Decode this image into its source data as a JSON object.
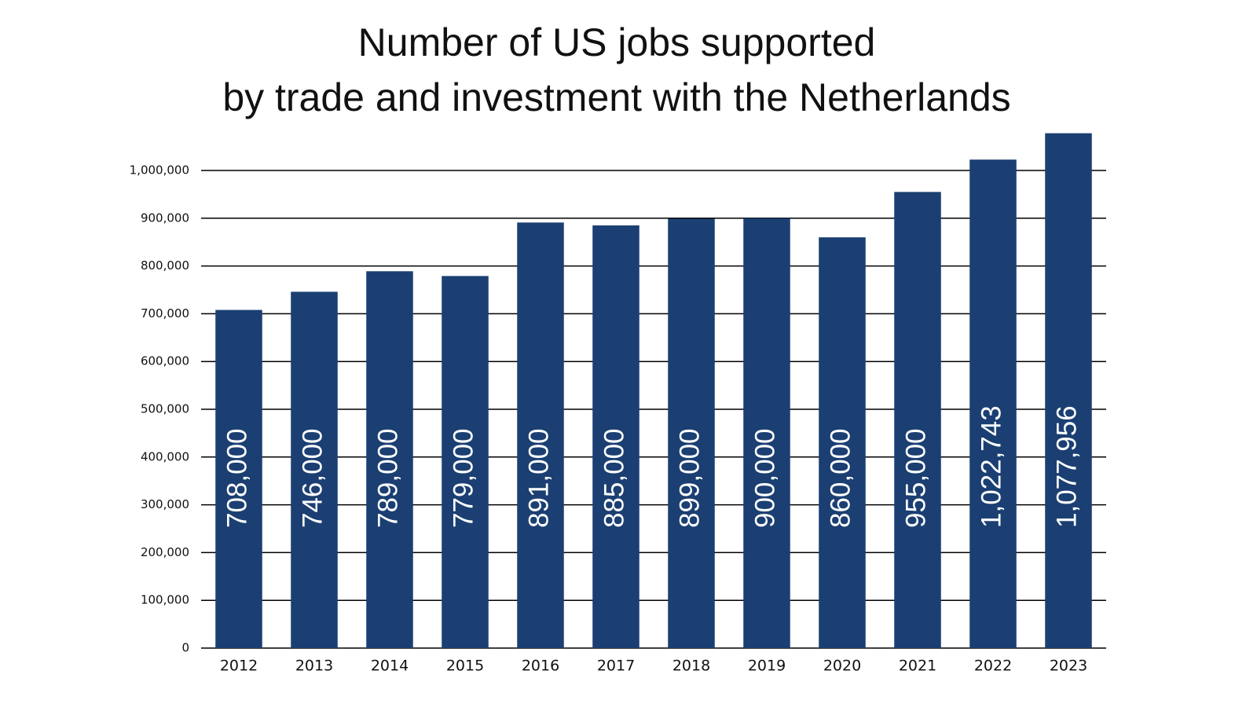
{
  "chart_data": {
    "type": "bar",
    "title": [
      "Number of US jobs supported",
      "by trade and investment with the Netherlands"
    ],
    "categories": [
      "2012",
      "2013",
      "2014",
      "2015",
      "2016",
      "2017",
      "2018",
      "2019",
      "2020",
      "2021",
      "2022",
      "2023"
    ],
    "values": [
      708000,
      746000,
      789000,
      779000,
      891000,
      885000,
      899000,
      900000,
      860000,
      955000,
      1022743,
      1077956
    ],
    "value_labels": [
      "708,000",
      "746,000",
      "789,000",
      "779,000",
      "891,000",
      "885,000",
      "899,000",
      "900,000",
      "860,000",
      "955,000",
      "1,022,743",
      "1,077,956"
    ],
    "color": "#1b3f72",
    "ylim": [
      0,
      1100000
    ],
    "yticks": [
      0,
      {
        "value": 100000,
        "label": "100,000"
      },
      {
        "value": 200000,
        "label": "200,000"
      },
      {
        "value": 300000,
        "label": "300,000"
      },
      {
        "value": 400000,
        "label": "400,000"
      },
      {
        "value": 500000,
        "label": "500,000"
      },
      {
        "value": 600000,
        "label": "600,000"
      },
      {
        "value": 700000,
        "label": "700,000"
      },
      {
        "value": 800000,
        "label": "800,000"
      },
      {
        "value": 900000,
        "label": "900,000"
      },
      {
        "value": 1000000,
        "label": "1,000,000"
      }
    ],
    "grid": true
  }
}
